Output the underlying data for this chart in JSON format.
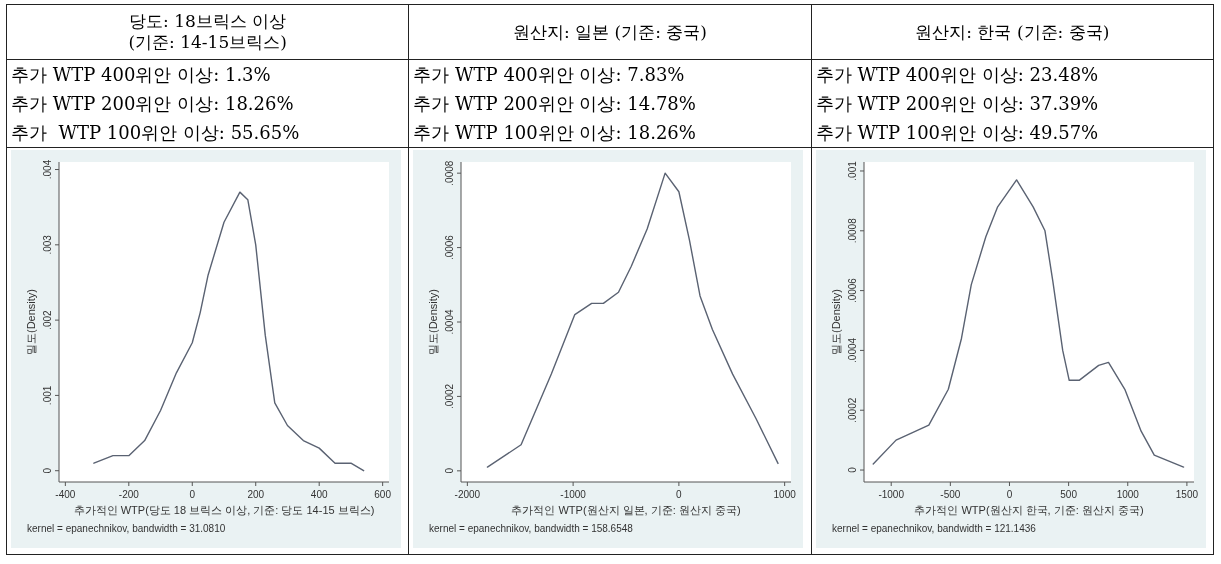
{
  "chart_data": [
    {
      "type": "line",
      "title": "당도: 18브릭스 이상\n(기준: 14-15브릭스)",
      "annotations": [
        "추가 WTP 400위안 이상: 1.3%",
        "추가 WTP 200위안 이상: 18.26%",
        "추가  WTP 100위안 이상: 55.65%",
        "kernel = epanechnikov, bandwidth = 31.0810"
      ],
      "xlabel": "추가적인 WTP(당도 18 브릭스 이상, 기준: 당도 14-15 브릭스)",
      "ylabel": "밀도(Density)",
      "color": "#5a6272",
      "x": [
        -310,
        -250,
        -200,
        -150,
        -100,
        -50,
        0,
        25,
        50,
        100,
        150,
        175,
        200,
        230,
        260,
        300,
        350,
        400,
        450,
        500,
        540
      ],
      "values": [
        0.0001,
        0.0002,
        0.0002,
        0.0004,
        0.0008,
        0.0013,
        0.0017,
        0.0021,
        0.0026,
        0.0033,
        0.0037,
        0.0036,
        0.003,
        0.0018,
        0.0009,
        0.0006,
        0.0004,
        0.0003,
        0.0001,
        0.0001,
        0
      ],
      "xlim": [
        -420,
        620
      ],
      "ylim": [
        -0.00015,
        0.0041
      ],
      "xticks": [
        -400,
        -200,
        0,
        200,
        400,
        600
      ],
      "yticks": [
        {
          "value": 0,
          "label": "0"
        },
        {
          "value": 0.001,
          "label": ".001"
        },
        {
          "value": 0.002,
          "label": ".002"
        },
        {
          "value": 0.003,
          "label": ".003"
        },
        {
          "value": 0.004,
          "label": ".004"
        }
      ]
    },
    {
      "type": "line",
      "title": "원산지: 일본 (기준: 중국)",
      "annotations": [
        "추가 WTP 400위안 이상: 7.83%",
        "추가 WTP 200위안 이상: 14.78%",
        "추가 WTP 100위안 이상: 18.26%",
        "kernel = epanechnikov, bandwidth = 158.6548"
      ],
      "xlabel": "추가적인 WTP(원산지 일본, 기준: 원산지 중국)",
      "ylabel": "밀도(Density)",
      "color": "#5a6272",
      "x": [
        -1810,
        -1492,
        -1206,
        -984,
        -825,
        -714,
        -571,
        -450,
        -300,
        -130,
        0,
        100,
        200,
        317,
        508,
        730,
        937
      ],
      "values": [
        1e-05,
        7e-05,
        0.00026,
        0.00042,
        0.00045,
        0.00045,
        0.00048,
        0.00055,
        0.00065,
        0.0008,
        0.00075,
        0.00062,
        0.00047,
        0.00038,
        0.00026,
        0.00014,
        2e-05
      ],
      "xlim": [
        -2060,
        1060
      ],
      "ylim": [
        -3e-05,
        0.00083
      ],
      "xticks": [
        -2000,
        -1000,
        0,
        1000
      ],
      "yticks": [
        {
          "value": 0,
          "label": "0"
        },
        {
          "value": 0.0002,
          "label": ".0002"
        },
        {
          "value": 0.0004,
          "label": ".0004"
        },
        {
          "value": 0.0006,
          "label": ".0006"
        },
        {
          "value": 0.0008,
          "label": ".0008"
        }
      ]
    },
    {
      "type": "line",
      "title": "원산지: 한국 (기준: 중국)",
      "annotations": [
        "추가 WTP 400위안 이상: 23.48%",
        "추가 WTP 200위안 이상: 37.39%",
        "추가 WTP 100위안 이상: 49.57%",
        "kernel = epanechnikov, bandwidth = 121.1436"
      ],
      "xlabel": "추가적인 WTP(원산지 한국, 기준: 원산지 중국)",
      "ylabel": "밀도(Density)",
      "color": "#5a6272",
      "x": [
        -1152,
        -959,
        -848,
        -682,
        -517,
        -406,
        -323,
        -200,
        -100,
        60,
        200,
        300,
        367,
        450,
        505,
        589,
        754,
        837,
        975,
        1113,
        1224,
        1472
      ],
      "values": [
        2e-05,
        0.0001,
        0.00012,
        0.00015,
        0.00027,
        0.00044,
        0.00062,
        0.00078,
        0.00088,
        0.00097,
        0.00088,
        0.0008,
        0.00063,
        0.0004,
        0.0003,
        0.0003,
        0.00035,
        0.00036,
        0.00027,
        0.00013,
        5e-05,
        1e-05
      ],
      "xlim": [
        -1230,
        1560
      ],
      "ylim": [
        -4e-05,
        0.00103
      ],
      "xticks": [
        -1000,
        -500,
        0,
        500,
        1000,
        1500
      ],
      "yticks": [
        {
          "value": 0,
          "label": "0"
        },
        {
          "value": 0.0002,
          "label": ".0002"
        },
        {
          "value": 0.0004,
          "label": ".0004"
        },
        {
          "value": 0.0006,
          "label": ".0006"
        },
        {
          "value": 0.0008,
          "label": ".0008"
        },
        {
          "value": 0.001,
          "label": ".001"
        }
      ]
    }
  ]
}
